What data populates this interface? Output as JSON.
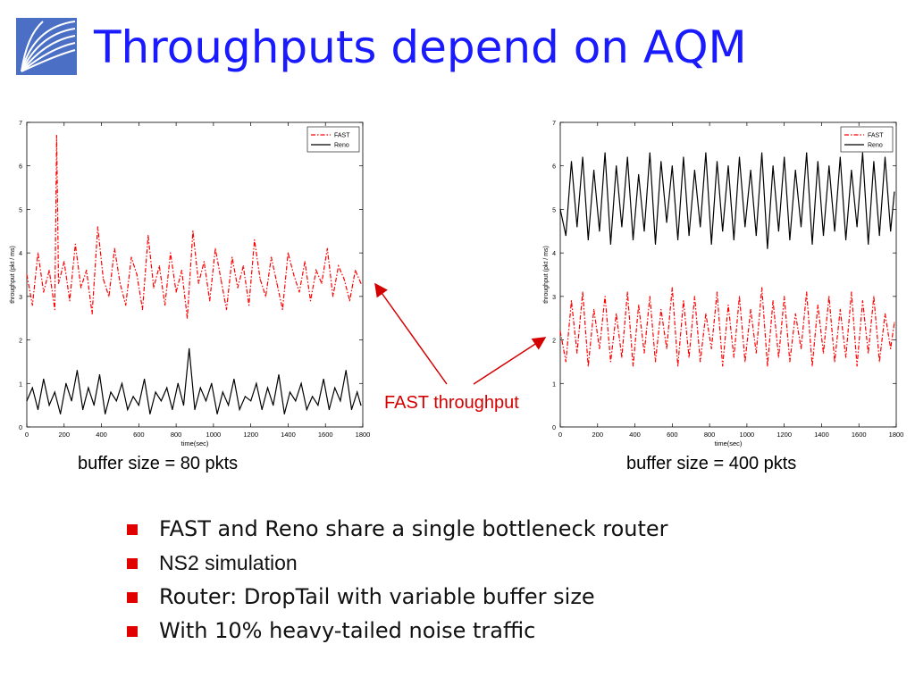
{
  "slide": {
    "title": "Throughputs depend on AQM",
    "annotation": "FAST throughput",
    "bullets": [
      "FAST and Reno share a single bottleneck router",
      "NS2 simulation",
      "Router: DropTail with variable buffer size",
      "With 10% heavy-tailed noise traffic"
    ],
    "colors": {
      "title": "#1a1aff",
      "annotation": "#d40000",
      "bullet": "#e00000",
      "fast": "#ff0000",
      "reno": "#000000"
    }
  },
  "chart_data": [
    {
      "type": "line",
      "caption": "buffer size = 80 pkts",
      "xlabel": "time(sec)",
      "ylabel": "throughput (pkt / ms)",
      "xlim": [
        0,
        1800
      ],
      "ylim": [
        0,
        7
      ],
      "xticks": [
        "0",
        "200",
        "400",
        "600",
        "800",
        "1000",
        "1200",
        "1400",
        "1600",
        "1800"
      ],
      "yticks": [
        "0",
        "1",
        "2",
        "3",
        "4",
        "5",
        "6",
        "7"
      ],
      "legend": "top-right",
      "series": [
        {
          "name": "FAST",
          "style": "dash-dot",
          "color": "#ff0000",
          "x": [
            0,
            30,
            60,
            90,
            120,
            150,
            160,
            170,
            200,
            230,
            260,
            290,
            320,
            350,
            380,
            410,
            440,
            470,
            500,
            530,
            560,
            590,
            620,
            650,
            680,
            710,
            740,
            770,
            800,
            830,
            860,
            890,
            920,
            950,
            980,
            1010,
            1040,
            1070,
            1100,
            1130,
            1160,
            1190,
            1220,
            1250,
            1280,
            1310,
            1340,
            1370,
            1400,
            1430,
            1460,
            1490,
            1520,
            1550,
            1580,
            1610,
            1640,
            1670,
            1700,
            1730,
            1760,
            1790
          ],
          "y": [
            3.5,
            2.8,
            4.0,
            3.1,
            3.6,
            2.7,
            6.7,
            3.3,
            3.8,
            2.9,
            4.2,
            3.2,
            3.6,
            2.6,
            4.6,
            3.4,
            3.0,
            4.1,
            3.3,
            2.8,
            3.9,
            3.5,
            2.7,
            4.4,
            3.2,
            3.7,
            2.8,
            4.0,
            3.1,
            3.6,
            2.5,
            4.5,
            3.3,
            3.8,
            2.9,
            4.1,
            3.4,
            2.7,
            3.9,
            3.2,
            3.7,
            2.8,
            4.3,
            3.4,
            3.0,
            3.9,
            3.3,
            2.7,
            4.0,
            3.5,
            3.1,
            3.8,
            2.9,
            3.6,
            3.3,
            4.1,
            3.0,
            3.7,
            3.4,
            2.9,
            3.6,
            3.3
          ]
        },
        {
          "name": "Reno",
          "style": "solid",
          "color": "#000000",
          "x": [
            0,
            30,
            60,
            90,
            120,
            150,
            180,
            210,
            240,
            270,
            300,
            330,
            360,
            390,
            420,
            450,
            480,
            510,
            540,
            570,
            600,
            630,
            660,
            690,
            720,
            750,
            780,
            810,
            840,
            870,
            900,
            930,
            960,
            990,
            1020,
            1050,
            1080,
            1110,
            1140,
            1170,
            1200,
            1230,
            1260,
            1290,
            1320,
            1350,
            1380,
            1410,
            1440,
            1470,
            1500,
            1530,
            1560,
            1590,
            1620,
            1650,
            1680,
            1710,
            1740,
            1770,
            1790
          ],
          "y": [
            0.6,
            0.9,
            0.4,
            1.1,
            0.5,
            0.8,
            0.3,
            1.0,
            0.6,
            1.3,
            0.4,
            0.9,
            0.5,
            1.2,
            0.3,
            0.8,
            0.6,
            1.0,
            0.4,
            0.7,
            0.5,
            1.1,
            0.3,
            0.8,
            0.6,
            0.9,
            0.4,
            1.0,
            0.5,
            1.8,
            0.4,
            0.9,
            0.6,
            1.0,
            0.3,
            0.8,
            0.5,
            1.1,
            0.4,
            0.7,
            0.6,
            1.0,
            0.4,
            0.9,
            0.5,
            1.2,
            0.3,
            0.8,
            0.6,
            1.0,
            0.4,
            0.7,
            0.5,
            1.1,
            0.4,
            0.9,
            0.6,
            1.3,
            0.4,
            0.8,
            0.5
          ]
        }
      ]
    },
    {
      "type": "line",
      "caption": "buffer size = 400 pkts",
      "xlabel": "time(sec)",
      "ylabel": "throughput (pkt / ms)",
      "xlim": [
        0,
        1800
      ],
      "ylim": [
        0,
        7
      ],
      "xticks": [
        "0",
        "200",
        "400",
        "600",
        "800",
        "1000",
        "1200",
        "1400",
        "1600",
        "1800"
      ],
      "yticks": [
        "0",
        "1",
        "2",
        "3",
        "4",
        "5",
        "6",
        "7"
      ],
      "legend": "top-right",
      "series": [
        {
          "name": "FAST",
          "style": "dash-dot",
          "color": "#ff0000",
          "x": [
            0,
            30,
            60,
            90,
            120,
            150,
            180,
            210,
            240,
            270,
            300,
            330,
            360,
            390,
            420,
            450,
            480,
            510,
            540,
            570,
            600,
            630,
            660,
            690,
            720,
            750,
            780,
            810,
            840,
            870,
            900,
            930,
            960,
            990,
            1020,
            1050,
            1080,
            1110,
            1140,
            1170,
            1200,
            1230,
            1260,
            1290,
            1320,
            1350,
            1380,
            1410,
            1440,
            1470,
            1500,
            1530,
            1560,
            1590,
            1620,
            1650,
            1680,
            1710,
            1740,
            1770,
            1790
          ],
          "y": [
            2.2,
            1.5,
            2.9,
            1.7,
            3.1,
            1.4,
            2.7,
            1.8,
            3.0,
            1.5,
            2.6,
            1.6,
            3.1,
            1.4,
            2.8,
            1.7,
            3.0,
            1.5,
            2.7,
            1.8,
            3.2,
            1.4,
            2.9,
            1.6,
            3.0,
            1.5,
            2.6,
            1.8,
            3.1,
            1.4,
            2.8,
            1.6,
            3.0,
            1.5,
            2.7,
            1.7,
            3.2,
            1.4,
            2.9,
            1.6,
            3.0,
            1.5,
            2.6,
            1.8,
            3.1,
            1.4,
            2.8,
            1.7,
            3.0,
            1.5,
            2.7,
            1.6,
            3.1,
            1.4,
            2.9,
            1.7,
            3.0,
            1.5,
            2.6,
            1.8,
            2.4
          ]
        },
        {
          "name": "Reno",
          "style": "solid",
          "color": "#000000",
          "x": [
            0,
            30,
            60,
            90,
            120,
            150,
            180,
            210,
            240,
            270,
            300,
            330,
            360,
            390,
            420,
            450,
            480,
            510,
            540,
            570,
            600,
            630,
            660,
            690,
            720,
            750,
            780,
            810,
            840,
            870,
            900,
            930,
            960,
            990,
            1020,
            1050,
            1080,
            1110,
            1140,
            1170,
            1200,
            1230,
            1260,
            1290,
            1320,
            1350,
            1380,
            1410,
            1440,
            1470,
            1500,
            1530,
            1560,
            1590,
            1620,
            1650,
            1680,
            1710,
            1740,
            1770,
            1790
          ],
          "y": [
            5.0,
            4.4,
            6.1,
            4.6,
            6.2,
            4.3,
            5.9,
            4.5,
            6.3,
            4.2,
            6.0,
            4.6,
            6.2,
            4.3,
            5.8,
            4.5,
            6.3,
            4.2,
            6.1,
            4.7,
            6.0,
            4.3,
            6.2,
            4.4,
            5.9,
            4.6,
            6.3,
            4.2,
            6.1,
            4.5,
            6.0,
            4.3,
            6.2,
            4.6,
            5.9,
            4.4,
            6.3,
            4.1,
            6.0,
            4.5,
            6.2,
            4.3,
            5.9,
            4.6,
            6.3,
            4.2,
            6.1,
            4.4,
            6.0,
            4.5,
            6.2,
            4.3,
            5.9,
            4.6,
            6.3,
            4.2,
            6.1,
            4.4,
            6.2,
            4.5,
            5.4
          ]
        }
      ]
    }
  ]
}
